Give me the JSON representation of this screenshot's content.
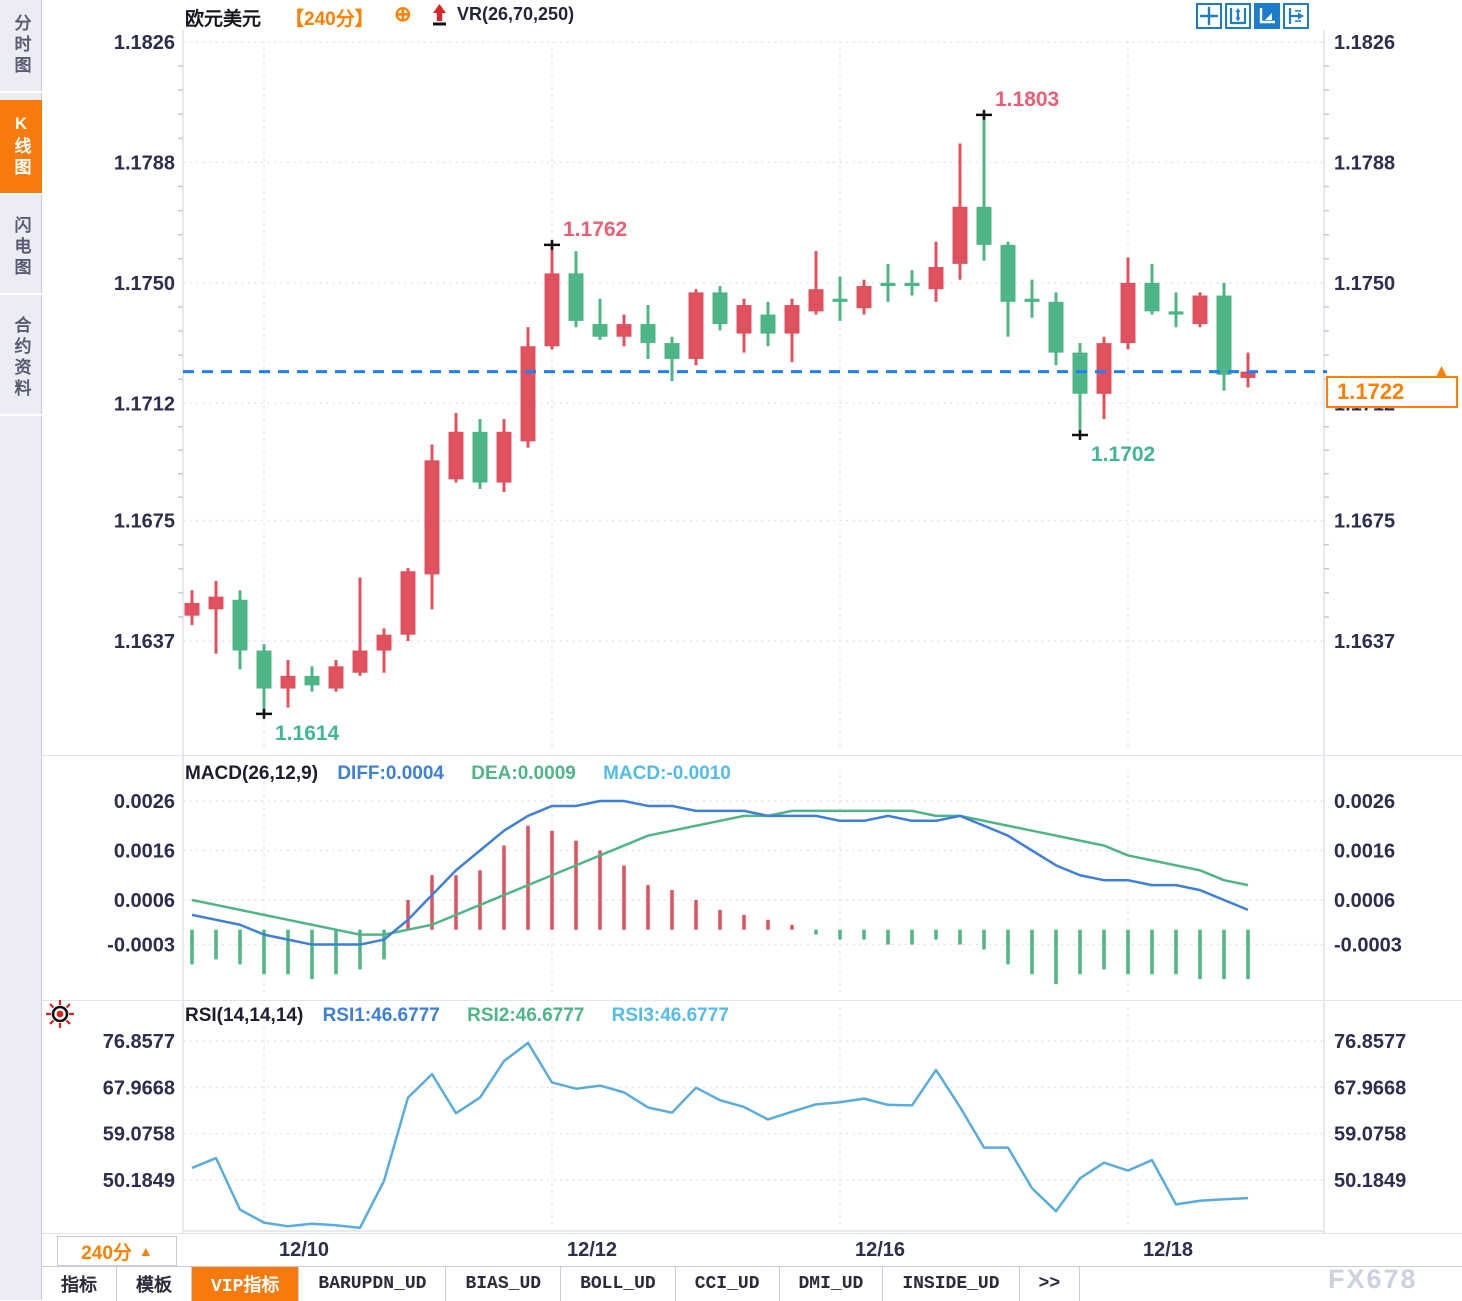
{
  "colors": {
    "up": "#E0515F",
    "down": "#4EB586",
    "diff-line": "#3E7FD8",
    "dea-line": "#4FB586",
    "macd-readout": "#53BCEA",
    "rsi-line": "#58ACDE",
    "axis-text": "#2D2D4E",
    "grid": "#E3E5EE",
    "dashed-price-line": "#1E80FF",
    "accent-orange": "#FF8000",
    "tab-active": "#F87A0D",
    "annotation-up": "#ED5E74",
    "annotation-down": "#3FB796",
    "icon-blue": "#1B7CCC",
    "sidebar-bg": "#ECEDF4",
    "sidebar-text": "#5A5B73",
    "watermark": "#CBD1DE"
  },
  "header": {
    "title": "欧元美元",
    "period_tag": "【240分】",
    "plus_glyph": "⊕",
    "vr_label": "VR(26,70,250)"
  },
  "sidebar": {
    "items": [
      {
        "label": "分时图",
        "active": false
      },
      {
        "label": "K线图",
        "active": true
      },
      {
        "label": "闪电图",
        "active": false
      },
      {
        "label": "合约资料",
        "active": false
      }
    ]
  },
  "price_badge": {
    "value": "1.1722"
  },
  "x_axis": {
    "period_label": "240分",
    "period_arrow": "▲",
    "dates": [
      {
        "label": "12/10",
        "index": 3
      },
      {
        "label": "12/12",
        "index": 15
      },
      {
        "label": "12/16",
        "index": 27
      },
      {
        "label": "12/18",
        "index": 39
      }
    ]
  },
  "bottom_tabs": {
    "items": [
      {
        "label": "指标",
        "active": false
      },
      {
        "label": "模板",
        "active": false
      },
      {
        "label": "VIP指标",
        "active": true
      },
      {
        "label": "BARUPDN_UD",
        "active": false
      },
      {
        "label": "BIAS_UD",
        "active": false
      },
      {
        "label": "BOLL_UD",
        "active": false
      },
      {
        "label": "CCI_UD",
        "active": false
      },
      {
        "label": "DMI_UD",
        "active": false
      },
      {
        "label": "INSIDE_UD",
        "active": false
      },
      {
        "label": ">>",
        "active": false
      }
    ]
  },
  "watermark": "FX678",
  "chart_data": [
    {
      "type": "candlestick",
      "title": "欧元美元 240分",
      "overlay": "VR(26,70,250)",
      "yticks": [
        1.1826,
        1.1788,
        1.175,
        1.1712,
        1.1675,
        1.1637
      ],
      "ylim": [
        1.1614,
        1.1826
      ],
      "current_price": 1.1722,
      "annotations": [
        {
          "text": "1.1762",
          "price": 1.1762,
          "index": 15,
          "side": "high"
        },
        {
          "text": "1.1803",
          "price": 1.1803,
          "index": 33,
          "side": "high"
        },
        {
          "text": "1.1614",
          "price": 1.1614,
          "index": 3,
          "side": "low"
        },
        {
          "text": "1.1702",
          "price": 1.1702,
          "index": 37,
          "side": "low"
        }
      ],
      "candles": [
        [
          1.1645,
          1.1653,
          1.1642,
          1.1649
        ],
        [
          1.1647,
          1.1656,
          1.1633,
          1.1651
        ],
        [
          1.165,
          1.1653,
          1.1628,
          1.1634
        ],
        [
          1.1634,
          1.1636,
          1.1614,
          1.1622
        ],
        [
          1.1622,
          1.1631,
          1.1616,
          1.1626
        ],
        [
          1.1626,
          1.1629,
          1.1621,
          1.1623
        ],
        [
          1.1622,
          1.1631,
          1.1621,
          1.1629
        ],
        [
          1.1627,
          1.1657,
          1.1626,
          1.1634
        ],
        [
          1.1634,
          1.1641,
          1.1627,
          1.1639
        ],
        [
          1.1639,
          1.166,
          1.1637,
          1.1659
        ],
        [
          1.1658,
          1.1699,
          1.1647,
          1.1694
        ],
        [
          1.1688,
          1.1709,
          1.1687,
          1.1703
        ],
        [
          1.1703,
          1.1707,
          1.1685,
          1.1687
        ],
        [
          1.1687,
          1.1707,
          1.1684,
          1.1703
        ],
        [
          1.17,
          1.1736,
          1.1698,
          1.173
        ],
        [
          1.173,
          1.1762,
          1.1729,
          1.1753
        ],
        [
          1.1753,
          1.176,
          1.1736,
          1.1738
        ],
        [
          1.1737,
          1.1745,
          1.1732,
          1.1733
        ],
        [
          1.1733,
          1.174,
          1.173,
          1.1737
        ],
        [
          1.1737,
          1.1743,
          1.1726,
          1.1731
        ],
        [
          1.1731,
          1.1733,
          1.1719,
          1.1726
        ],
        [
          1.1726,
          1.1748,
          1.1724,
          1.1747
        ],
        [
          1.1747,
          1.1749,
          1.1735,
          1.1737
        ],
        [
          1.1734,
          1.1745,
          1.1728,
          1.1743
        ],
        [
          1.174,
          1.1744,
          1.173,
          1.1734
        ],
        [
          1.1734,
          1.1745,
          1.1725,
          1.1743
        ],
        [
          1.1741,
          1.176,
          1.174,
          1.1748
        ],
        [
          1.1745,
          1.1752,
          1.1738,
          1.1744
        ],
        [
          1.1742,
          1.1751,
          1.174,
          1.1749
        ],
        [
          1.175,
          1.1756,
          1.1744,
          1.1749
        ],
        [
          1.175,
          1.1754,
          1.1746,
          1.1749
        ],
        [
          1.1748,
          1.1763,
          1.1744,
          1.1755
        ],
        [
          1.1756,
          1.1794,
          1.1751,
          1.1774
        ],
        [
          1.1774,
          1.1803,
          1.1757,
          1.1762
        ],
        [
          1.1762,
          1.1763,
          1.1733,
          1.1744
        ],
        [
          1.1745,
          1.1751,
          1.1739,
          1.1744
        ],
        [
          1.1744,
          1.1747,
          1.1724,
          1.1728
        ],
        [
          1.1728,
          1.1731,
          1.1702,
          1.1715
        ],
        [
          1.1715,
          1.1733,
          1.1707,
          1.1731
        ],
        [
          1.1731,
          1.1758,
          1.1729,
          1.175
        ],
        [
          1.175,
          1.1756,
          1.174,
          1.1741
        ],
        [
          1.1741,
          1.1747,
          1.1736,
          1.174
        ],
        [
          1.1737,
          1.1747,
          1.1736,
          1.1746
        ],
        [
          1.1746,
          1.175,
          1.1716,
          1.1721
        ],
        [
          1.172,
          1.1728,
          1.1717,
          1.1722
        ]
      ]
    },
    {
      "type": "macd",
      "label": "MACD(26,12,9)",
      "readouts": [
        "DIFF:0.0004",
        "DEA:0.0009",
        "MACD:-0.0010"
      ],
      "yticks": [
        0.0026,
        0.0016,
        0.0006,
        -0.0003
      ],
      "hist": [
        -0.0007,
        -0.0006,
        -0.0007,
        -0.0009,
        -0.0009,
        -0.001,
        -0.0009,
        -0.0008,
        -0.0006,
        0.0006,
        0.0011,
        0.0011,
        0.0012,
        0.0017,
        0.0021,
        0.002,
        0.0018,
        0.0016,
        0.0013,
        0.0009,
        0.0008,
        0.0006,
        0.0004,
        0.0003,
        0.0002,
        0.0001,
        -0.0001,
        -0.0002,
        -0.0002,
        -0.0003,
        -0.0003,
        -0.0002,
        -0.0003,
        -0.0004,
        -0.0007,
        -0.0009,
        -0.0011,
        -0.0009,
        -0.0008,
        -0.0009,
        -0.0009,
        -0.0009,
        -0.001,
        -0.001,
        -0.001
      ],
      "diff": [
        0.0003,
        0.0002,
        0.0001,
        -0.0001,
        -0.0002,
        -0.0003,
        -0.0003,
        -0.0003,
        -0.0002,
        0.0002,
        0.0007,
        0.0012,
        0.0016,
        0.002,
        0.0023,
        0.0025,
        0.0025,
        0.0026,
        0.0026,
        0.0025,
        0.0025,
        0.0024,
        0.0024,
        0.0024,
        0.0023,
        0.0023,
        0.0023,
        0.0022,
        0.0022,
        0.0023,
        0.0022,
        0.0022,
        0.0023,
        0.0021,
        0.0019,
        0.0016,
        0.0013,
        0.0011,
        0.001,
        0.001,
        0.0009,
        0.0009,
        0.0008,
        0.0006,
        0.0004
      ],
      "dea": [
        0.0006,
        0.0005,
        0.0004,
        0.0003,
        0.0002,
        0.0001,
        0.0,
        -0.0001,
        -0.0001,
        0.0,
        0.0001,
        0.0003,
        0.0005,
        0.0007,
        0.0009,
        0.0011,
        0.0013,
        0.0015,
        0.0017,
        0.0019,
        0.002,
        0.0021,
        0.0022,
        0.0023,
        0.0023,
        0.0024,
        0.0024,
        0.0024,
        0.0024,
        0.0024,
        0.0024,
        0.0023,
        0.0023,
        0.0022,
        0.0021,
        0.002,
        0.0019,
        0.0018,
        0.0017,
        0.0015,
        0.0014,
        0.0013,
        0.0012,
        0.001,
        0.0009
      ]
    },
    {
      "type": "line",
      "label": "RSI(14,14,14)",
      "readouts": [
        "RSI1:46.6777",
        "RSI2:46.6777",
        "RSI3:46.6777"
      ],
      "yticks": [
        76.8577,
        67.9668,
        59.0758,
        50.1849
      ],
      "values": [
        52.5,
        54.4,
        44.5,
        42.0,
        41.3,
        41.8,
        41.5,
        41.0,
        50.0,
        66.0,
        70.5,
        63.0,
        66.0,
        73.0,
        76.5,
        68.9,
        67.7,
        68.3,
        67.0,
        64.1,
        63.1,
        67.9,
        65.5,
        64.2,
        61.8,
        63.3,
        64.7,
        65.1,
        65.8,
        64.6,
        64.5,
        71.3,
        64.2,
        56.4,
        56.4,
        48.6,
        44.2,
        50.5,
        53.5,
        52.0,
        54.0,
        45.5,
        46.2,
        46.5,
        46.7
      ]
    }
  ]
}
